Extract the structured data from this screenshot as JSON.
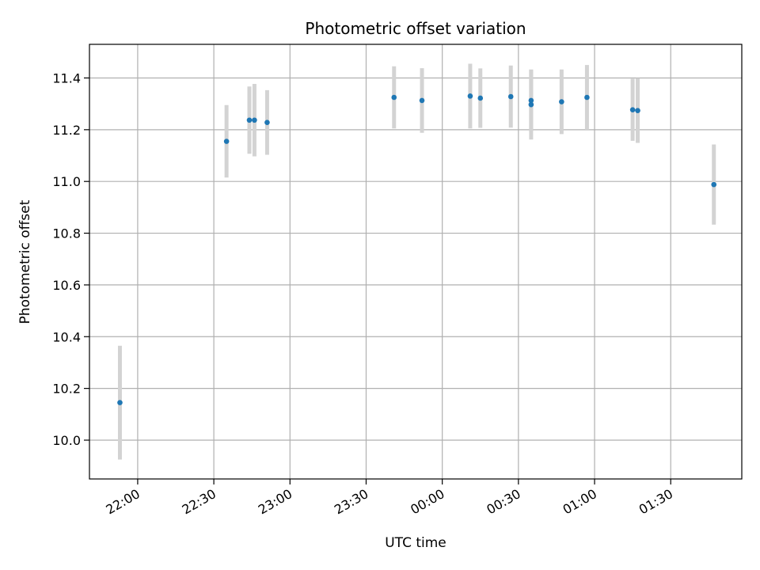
{
  "chart_data": {
    "type": "scatter",
    "title": "Photometric offset variation",
    "xlabel": "UTC time",
    "ylabel": "Photometric offset",
    "x_axis_kind": "time",
    "xlim": [
      "21:41",
      "01:58"
    ],
    "ylim": [
      9.85,
      11.53
    ],
    "grid": true,
    "legend": "none",
    "x_ticks": [
      "22:00",
      "22:30",
      "23:00",
      "23:30",
      "00:00",
      "00:30",
      "01:00",
      "01:30"
    ],
    "y_ticks": [
      "10.0",
      "10.2",
      "10.4",
      "10.6",
      "10.8",
      "11.0",
      "11.2",
      "11.4"
    ],
    "y_tick_values": [
      10.0,
      10.2,
      10.4,
      10.6,
      10.8,
      11.0,
      11.2,
      11.4
    ],
    "marker_color": "#1f77b4",
    "errorbar_color": "#d3d3d3",
    "points": [
      {
        "time": "21:53",
        "y": 10.145,
        "err": 0.22
      },
      {
        "time": "22:35",
        "y": 11.155,
        "err": 0.14
      },
      {
        "time": "22:44",
        "y": 11.237,
        "err": 0.13
      },
      {
        "time": "22:46",
        "y": 11.237,
        "err": 0.14
      },
      {
        "time": "22:51",
        "y": 11.228,
        "err": 0.125
      },
      {
        "time": "23:41",
        "y": 11.325,
        "err": 0.12
      },
      {
        "time": "23:52",
        "y": 11.313,
        "err": 0.125
      },
      {
        "time": "00:11",
        "y": 11.33,
        "err": 0.125
      },
      {
        "time": "00:15",
        "y": 11.322,
        "err": 0.115
      },
      {
        "time": "00:27",
        "y": 11.328,
        "err": 0.12
      },
      {
        "time": "00:35",
        "y": 11.297,
        "err": 0.135
      },
      {
        "time": "00:35",
        "y": 11.313,
        "err": 0.12
      },
      {
        "time": "00:47",
        "y": 11.308,
        "err": 0.125
      },
      {
        "time": "00:57",
        "y": 11.325,
        "err": 0.125
      },
      {
        "time": "01:15",
        "y": 11.277,
        "err": 0.12
      },
      {
        "time": "01:17",
        "y": 11.274,
        "err": 0.125
      },
      {
        "time": "01:47",
        "y": 10.988,
        "err": 0.155
      }
    ]
  }
}
